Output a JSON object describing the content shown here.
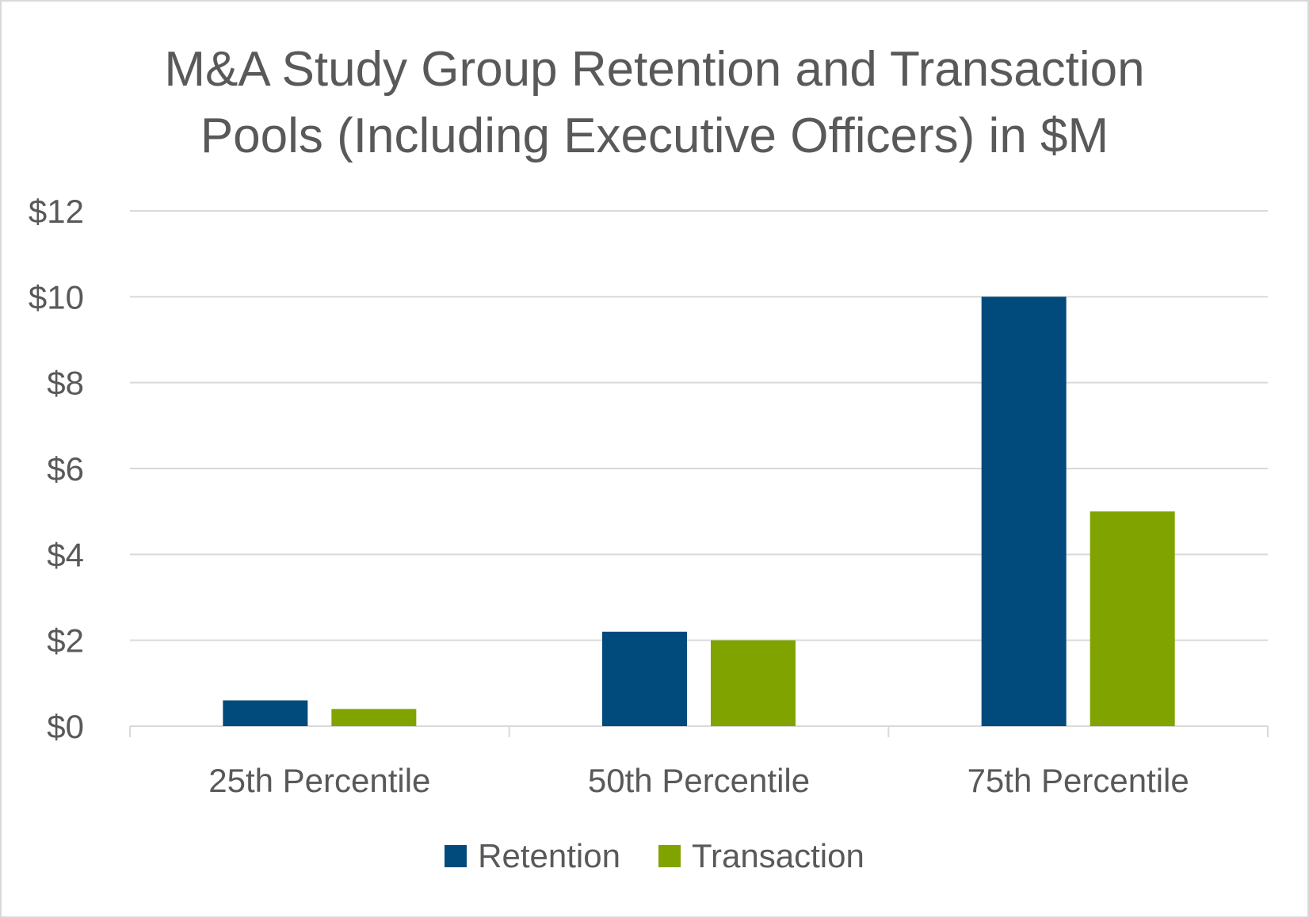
{
  "chart_data": {
    "type": "bar",
    "title_lines": [
      "M&A Study Group Retention and Transaction",
      "Pools (Including Executive Officers) in $M"
    ],
    "categories": [
      "25th Percentile",
      "50th Percentile",
      "75th Percentile"
    ],
    "series": [
      {
        "name": "Retention",
        "color": "#004b7c",
        "values": [
          0.6,
          2.2,
          10.0
        ]
      },
      {
        "name": "Transaction",
        "color": "#80a300",
        "values": [
          0.4,
          2.0,
          5.0
        ]
      }
    ],
    "ylim": [
      0,
      12
    ],
    "yticks": [
      0,
      2,
      4,
      6,
      8,
      10,
      12
    ],
    "ytick_labels": [
      "$0",
      "$2",
      "$4",
      "$6",
      "$8",
      "$10",
      "$12"
    ],
    "grid": true,
    "legend_position": "bottom"
  }
}
